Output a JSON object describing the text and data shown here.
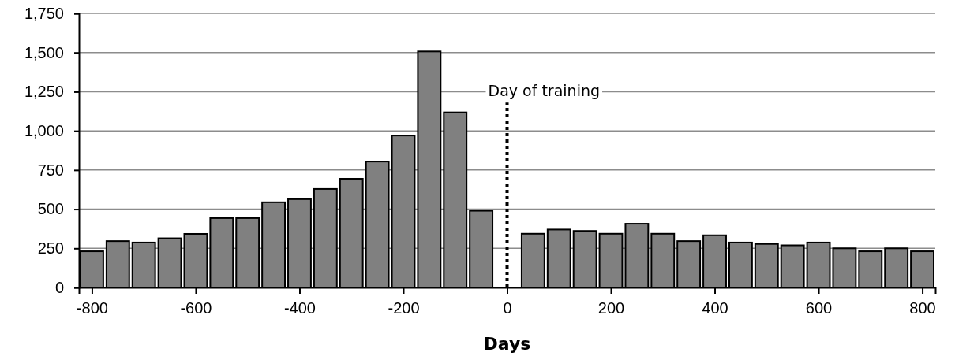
{
  "chart_data": {
    "type": "histogram",
    "xlabel": "Days",
    "bins": [
      -825,
      -775,
      -725,
      -675,
      -625,
      -575,
      -525,
      -475,
      -425,
      -375,
      -325,
      -275,
      -225,
      -175,
      -125,
      -75,
      -25,
      25,
      75,
      125,
      175,
      225,
      275,
      325,
      375,
      425,
      475,
      525,
      575,
      625,
      675,
      725,
      775,
      825
    ],
    "values": [
      231,
      296,
      287,
      314,
      342,
      443,
      443,
      544,
      564,
      629,
      694,
      804,
      970,
      1507,
      1118,
      490,
      0,
      343,
      370,
      361,
      343,
      407,
      343,
      296,
      333,
      287,
      278,
      269,
      287,
      250,
      231,
      250,
      231
    ],
    "color": "#808080",
    "xlim": [
      -825,
      825
    ],
    "xticks": [
      -800,
      -600,
      -400,
      -200,
      0,
      200,
      400,
      600,
      800
    ],
    "ylim": [
      0,
      1750
    ],
    "yticks": [
      0,
      250,
      500,
      750,
      {
        "value": 1000,
        "label": "1,000"
      },
      {
        "value": 1250,
        "label": "1,250"
      },
      {
        "value": 1500,
        "label": "1,500"
      },
      {
        "value": 1750,
        "label": "1,750"
      }
    ],
    "grid": "y",
    "ref_lines": [
      {
        "axis": "x",
        "value": 0,
        "label": "Day of training",
        "line_style": "dotted",
        "color": "#000000"
      }
    ]
  }
}
